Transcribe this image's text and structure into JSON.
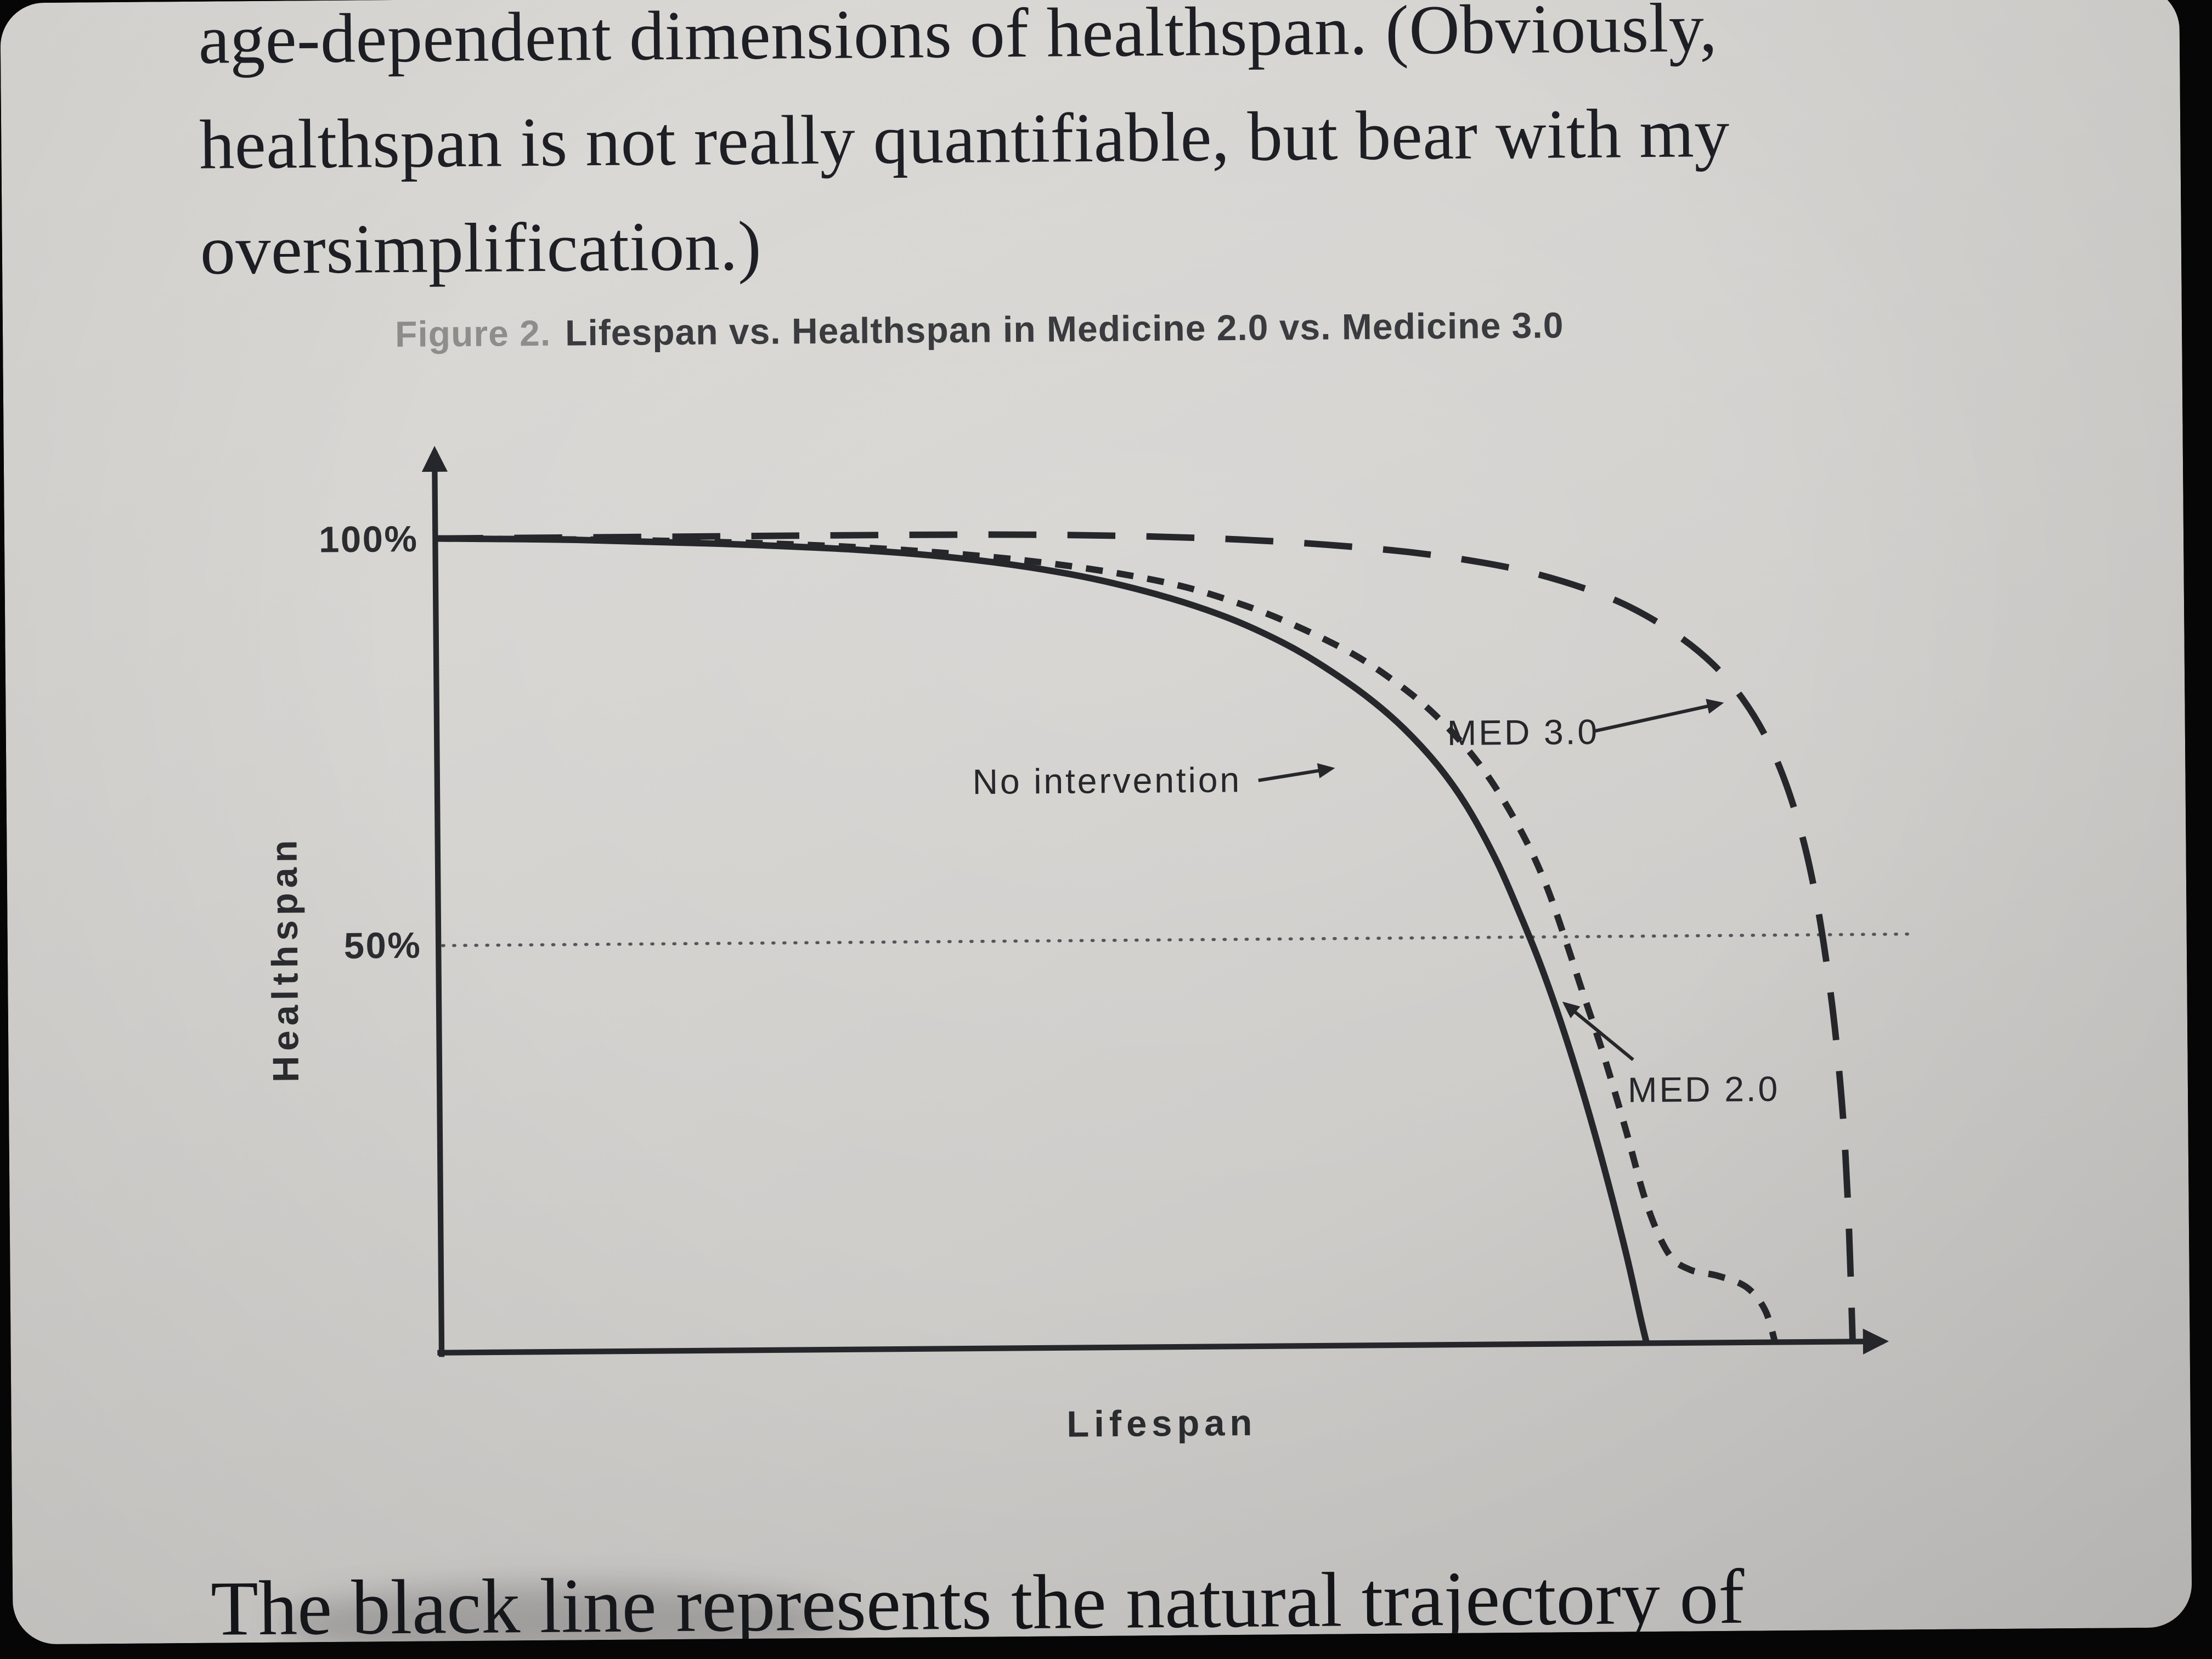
{
  "colors": {
    "ink": "#26272b",
    "screen_bg": "#d4d2cf",
    "caption_label_gray": "#8d8d8b"
  },
  "book_text": {
    "line1": "age-dependent dimensions of healthspan. (Obviously,",
    "line2": "healthspan is not really quantifiable, but bear with my",
    "line3": "oversimplification.)",
    "bottom_line": "The black line represents the natural trajectory of"
  },
  "figure": {
    "caption_label": "Figure 2.",
    "caption_title": "Lifespan vs. Healthspan in Medicine 2.0 vs. Medicine 3.0"
  },
  "chart_data": {
    "type": "line",
    "title": "Lifespan vs. Healthspan in Medicine 2.0 vs. Medicine 3.0",
    "xlabel": "Lifespan",
    "ylabel": "Healthspan",
    "grid": false,
    "legend_position": "inline-annotations",
    "x_axis": {
      "label": "Lifespan",
      "range": [
        0,
        100
      ],
      "ticks": []
    },
    "y_axis": {
      "label": "Healthspan",
      "range": [
        0,
        100
      ],
      "ticks": [
        {
          "value": 100,
          "label": "100%"
        },
        {
          "value": 50,
          "label": "50%"
        }
      ]
    },
    "reference_lines": [
      {
        "axis": "y",
        "value": 50,
        "style": "dotted"
      }
    ],
    "series": [
      {
        "name": "No intervention",
        "style": "solid",
        "color": "#26272b",
        "points": [
          [
            0,
            100
          ],
          [
            10,
            99.7
          ],
          [
            20,
            99.1
          ],
          [
            30,
            98.2
          ],
          [
            38,
            96.9
          ],
          [
            45,
            95.0
          ],
          [
            51,
            92.5
          ],
          [
            56,
            89.6
          ],
          [
            60,
            86.4
          ],
          [
            63,
            83.3
          ],
          [
            66,
            79.6
          ],
          [
            68.5,
            75.8
          ],
          [
            71,
            71.0
          ],
          [
            73,
            66.0
          ],
          [
            75,
            59.5
          ],
          [
            76.5,
            53.5
          ],
          [
            78,
            47.0
          ],
          [
            79.5,
            39.5
          ],
          [
            81,
            31.0
          ],
          [
            82.5,
            21.5
          ],
          [
            84,
            11.0
          ],
          [
            85,
            3.0
          ],
          [
            85.4,
            0
          ]
        ]
      },
      {
        "name": "MED 2.0",
        "style": "short-dash",
        "color": "#26272b",
        "points": [
          [
            0,
            100
          ],
          [
            14,
            99.6
          ],
          [
            27,
            98.8
          ],
          [
            37,
            97.6
          ],
          [
            45,
            96.0
          ],
          [
            52,
            93.8
          ],
          [
            57,
            91.2
          ],
          [
            61,
            88.4
          ],
          [
            65,
            84.9
          ],
          [
            68,
            81.4
          ],
          [
            70.5,
            77.8
          ],
          [
            73,
            73.2
          ],
          [
            75,
            68.4
          ],
          [
            77,
            62.3
          ],
          [
            78.5,
            56.5
          ],
          [
            79.8,
            50.0
          ],
          [
            81,
            43.5
          ],
          [
            82.5,
            35.5
          ],
          [
            84,
            26.5
          ],
          [
            85.5,
            17.0
          ],
          [
            87,
            11.0
          ],
          [
            88.5,
            9.0
          ],
          [
            90.5,
            8.2
          ],
          [
            92.5,
            6.8
          ],
          [
            93.8,
            4.0
          ],
          [
            94.5,
            0
          ]
        ]
      },
      {
        "name": "MED 3.0",
        "style": "long-dash",
        "color": "#26272b",
        "points": [
          [
            0,
            100
          ],
          [
            18,
            100
          ],
          [
            32,
            100
          ],
          [
            42,
            99.9
          ],
          [
            50,
            99.6
          ],
          [
            57,
            99.1
          ],
          [
            63,
            98.4
          ],
          [
            69,
            97.4
          ],
          [
            74,
            96.1
          ],
          [
            78,
            94.6
          ],
          [
            82,
            92.4
          ],
          [
            85,
            90.1
          ],
          [
            88,
            86.9
          ],
          [
            90.5,
            83.3
          ],
          [
            92.5,
            79.2
          ],
          [
            94.2,
            74.3
          ],
          [
            95.6,
            68.5
          ],
          [
            96.8,
            61.5
          ],
          [
            97.7,
            54.0
          ],
          [
            98.4,
            46.0
          ],
          [
            99,
            37.0
          ],
          [
            99.5,
            26.0
          ],
          [
            99.8,
            14.0
          ],
          [
            100,
            0
          ]
        ]
      }
    ],
    "annotations": [
      {
        "text": "No intervention",
        "series": "No intervention"
      },
      {
        "text": "MED 3.0",
        "series": "MED 3.0"
      },
      {
        "text": "MED 2.0",
        "series": "MED 2.0"
      }
    ]
  }
}
